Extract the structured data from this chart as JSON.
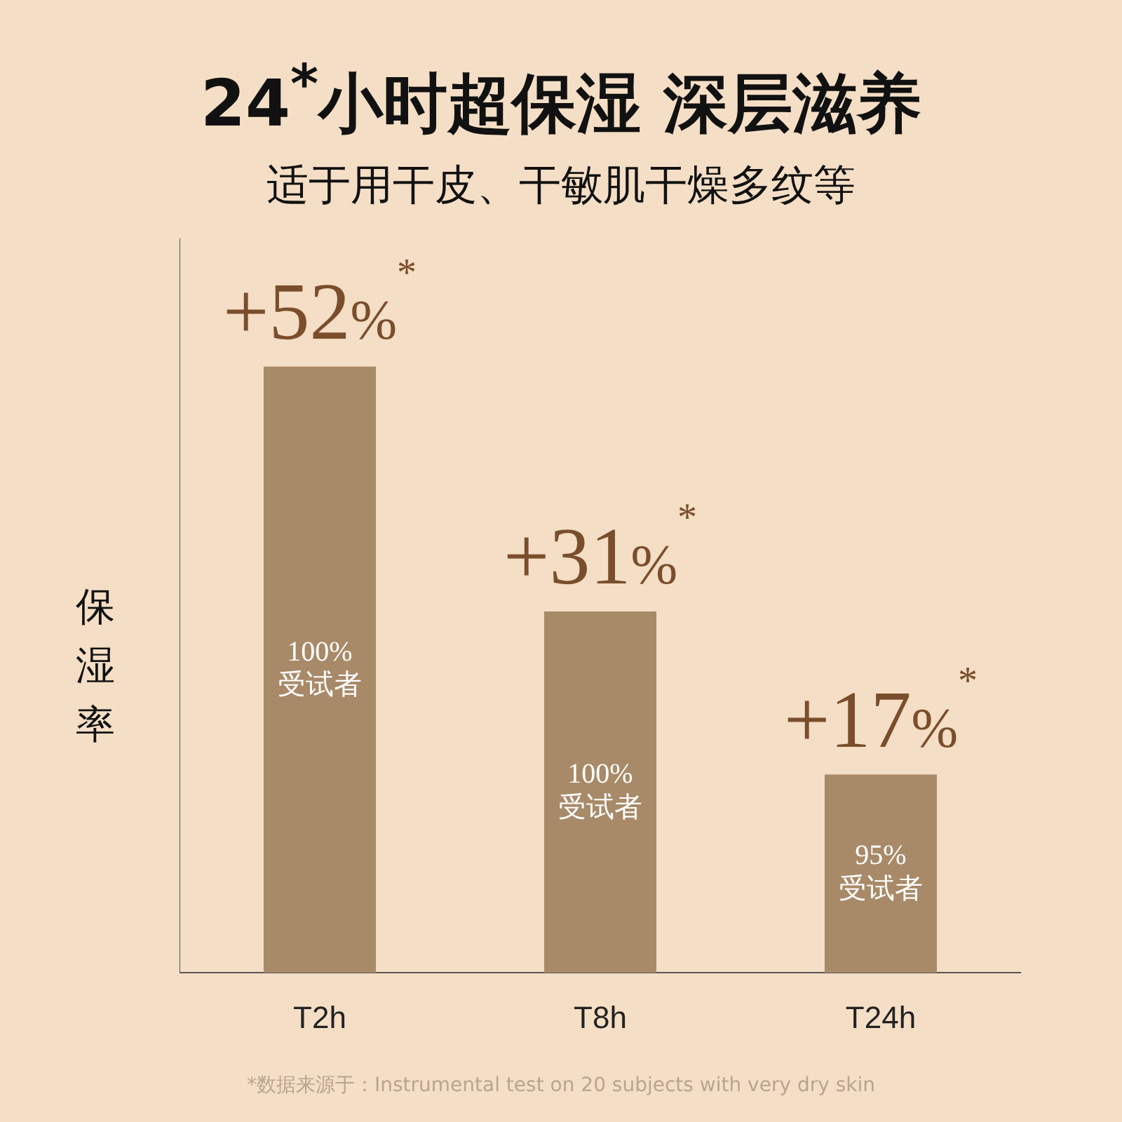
{
  "chart_data": {
    "type": "bar",
    "title": "24$^{*}$小时超保湿 深层滋养",
    "subtitle": "适于用干皮、干敏肌干燥多纹等",
    "ylabel": "保湿率",
    "categories": [
      "T2h",
      "T8h",
      "T24h"
    ],
    "values": [
      52,
      31,
      17
    ],
    "color": "#a88a69",
    "value_labels": [
      "+52%$^{*}$",
      "+31%$^{*}$",
      "+17%$^{*}$"
    ],
    "ylim": [
      0,
      63
    ],
    "tick_labels": "x",
    "grid": false,
    "legend": false,
    "annotations": [
      "100%\n受试者",
      "100%\n受试者",
      "95%\n受试者",
      "*数据来源于：Instrumental test on 20 subjects with very dry skin"
    ]
  }
}
